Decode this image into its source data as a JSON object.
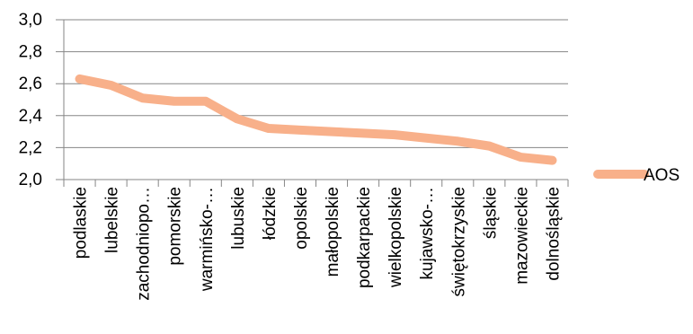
{
  "chart_data": {
    "type": "line",
    "title": "",
    "xlabel": "",
    "ylabel": "",
    "categories": [
      "podlaskie",
      "lubelskie",
      "zachodniopo…",
      "pomorskie",
      "warmińsko-…",
      "lubuskie",
      "łódzkie",
      "opolskie",
      "małopolskie",
      "podkarpackie",
      "wielkopolskie",
      "kujawsko-…",
      "świętokrzyskie",
      "śląskie",
      "mazowieckie",
      "dolnośląskie"
    ],
    "series": [
      {
        "name": "AOS",
        "color": "#F8B08A",
        "values": [
          2.63,
          2.59,
          2.51,
          2.49,
          2.49,
          2.38,
          2.32,
          2.31,
          2.3,
          2.29,
          2.28,
          2.26,
          2.24,
          2.21,
          2.14,
          2.12
        ]
      }
    ],
    "ylim": [
      2.0,
      3.0
    ],
    "yticks": [
      "2,0",
      "2,2",
      "2,4",
      "2,6",
      "2,8",
      "3,0"
    ],
    "grid": true,
    "legend": "right"
  }
}
